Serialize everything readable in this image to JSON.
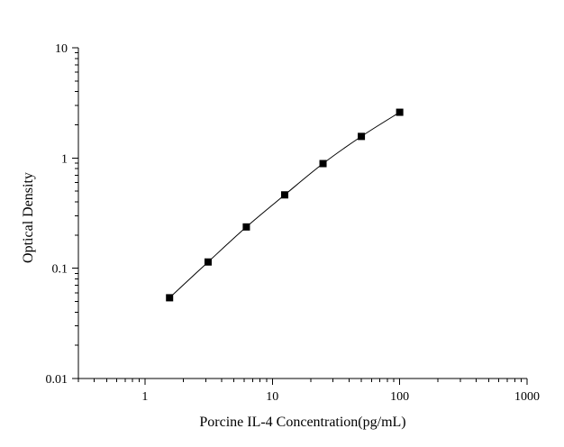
{
  "chart_data": {
    "type": "scatter",
    "title": "",
    "xlabel": "Porcine IL-4 Concentration(pg/mL)",
    "ylabel": "Optical Density",
    "x_scale": "log",
    "y_scale": "log",
    "xlim": [
      0.3,
      1000
    ],
    "ylim": [
      0.01,
      10
    ],
    "x_ticks": [
      {
        "value": 1,
        "label": "1"
      },
      {
        "value": 10,
        "label": "10"
      },
      {
        "value": 100,
        "label": "100"
      },
      {
        "value": 1000,
        "label": "1000"
      }
    ],
    "y_ticks": [
      {
        "value": 0.01,
        "label": "0.01"
      },
      {
        "value": 0.1,
        "label": "0.1"
      },
      {
        "value": 1,
        "label": "1"
      },
      {
        "value": 10,
        "label": "10"
      }
    ],
    "grid": false,
    "legend": "none",
    "series": [
      {
        "x": [
          1.56,
          3.13,
          6.25,
          12.5,
          25,
          50,
          100
        ],
        "y": [
          0.054,
          0.114,
          0.237,
          0.463,
          0.89,
          1.57,
          2.6
        ],
        "marker": "square",
        "color": "#000000",
        "fit_line": true
      }
    ]
  }
}
